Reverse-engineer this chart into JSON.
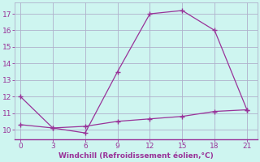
{
  "line1_x": [
    0,
    3,
    6,
    9,
    12,
    15,
    18,
    21
  ],
  "line1_y": [
    12.0,
    10.1,
    9.8,
    13.5,
    17.0,
    17.2,
    16.0,
    11.2
  ],
  "line2_x": [
    0,
    3,
    6,
    9,
    12,
    15,
    18,
    21
  ],
  "line2_y": [
    10.3,
    10.1,
    10.2,
    10.5,
    10.65,
    10.8,
    11.1,
    11.2
  ],
  "line_color": "#993399",
  "bg_color": "#cef5f0",
  "grid_color": "#b0b0cc",
  "xlabel": "Windchill (Refroidissement éolien,°C)",
  "xlabel_color": "#993399",
  "tick_color": "#993399",
  "xlim": [
    -0.5,
    22
  ],
  "ylim": [
    9.4,
    17.7
  ],
  "xticks": [
    0,
    3,
    6,
    9,
    12,
    15,
    18,
    21
  ],
  "yticks": [
    10,
    11,
    12,
    13,
    14,
    15,
    16,
    17
  ]
}
